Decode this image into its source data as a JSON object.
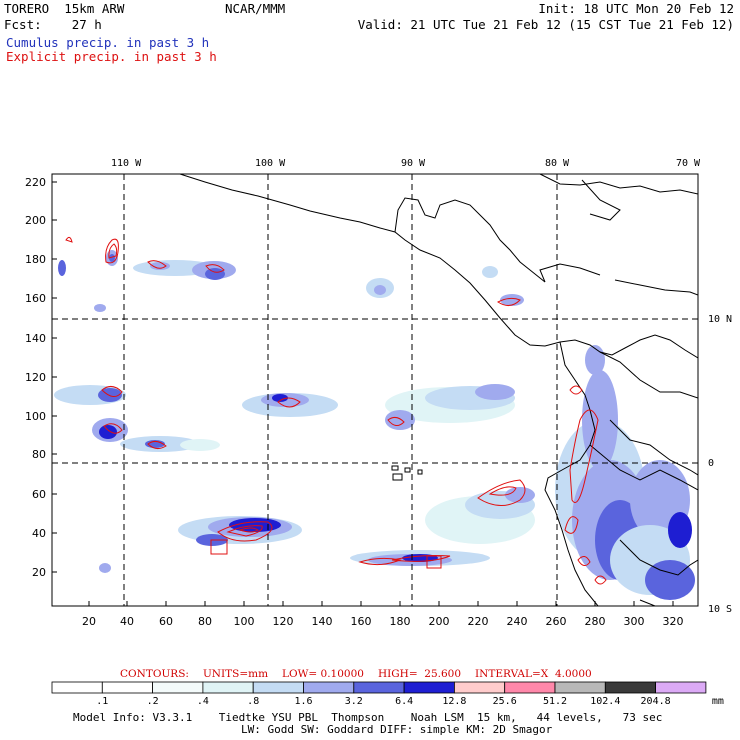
{
  "header": {
    "model": "TORERO  15km ARW",
    "org": "NCAR/MMM",
    "init": "Init: 18 UTC Mon 20 Feb 12",
    "fcst": "Fcst:    27 h",
    "valid": "Valid: 21 UTC Tue 21 Feb 12 (15 CST Tue 21 Feb 12)",
    "cumulus_label": "Cumulus precip. in past 3 h",
    "explicit_label": "Explicit precip. in past 3 h"
  },
  "colors": {
    "cumulus_text": "#2233bb",
    "explicit_text": "#dd1111",
    "contour": "#e01010",
    "land": "#000000"
  },
  "map": {
    "lon_labels": [
      "110 W",
      "100 W",
      "90 W",
      "80 W",
      "70 W"
    ],
    "lat_labels": [
      "10 N",
      "0",
      "10 S"
    ],
    "y_axis_ticks": [
      "220",
      "200",
      "180",
      "160",
      "140",
      "120",
      "100",
      "80",
      "60",
      "40",
      "20"
    ],
    "x_axis_ticks": [
      "20",
      "40",
      "60",
      "80",
      "100",
      "120",
      "140",
      "160",
      "180",
      "200",
      "220",
      "240",
      "260",
      "280",
      "300",
      "320"
    ]
  },
  "contours_info": {
    "label": "CONTOURS:",
    "units": "UNITS=mm",
    "low": "LOW= 0.10000",
    "high": "HIGH=  25.600",
    "interval": "INTERVAL=X  4.0000"
  },
  "legend": {
    "unit": "mm",
    "labels": [
      ".1",
      ".2",
      ".4",
      ".8",
      "1.6",
      "3.2",
      "6.4",
      "12.8",
      "25.6",
      "51.2",
      "102.4",
      "204.8"
    ],
    "colors": [
      "#ffffff",
      "#ffffff",
      "#f4fbfb",
      "#e0f4f6",
      "#c4dcf4",
      "#a0aaee",
      "#5a64dd",
      "#1e1ed2",
      "#ffcccc",
      "#ff88aa",
      "#b8b8b8",
      "#3a3a3a",
      "#dcaaf6"
    ]
  },
  "footer": {
    "line1": "Model Info: V3.3.1    Tiedtke YSU PBL  Thompson    Noah LSM  15 km,   44 levels,   73 sec",
    "line2": "LW: Godd SW: Goddard DIFF: simple KM: 2D Smagor"
  }
}
